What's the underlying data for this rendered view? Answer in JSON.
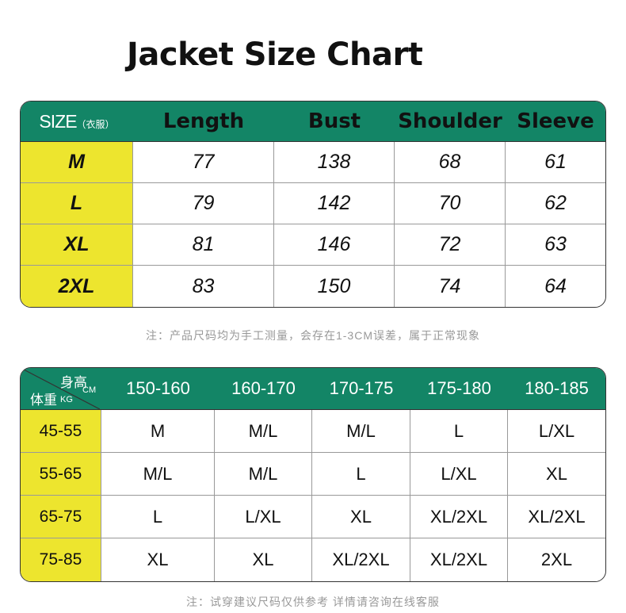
{
  "title": "Jacket Size Chart",
  "colors": {
    "header_green": "#138566",
    "size_yellow": "#ede52e"
  },
  "garment_table": {
    "size_label": "SIZE",
    "size_sub": "（衣服）",
    "headers": [
      "Length",
      "Bust",
      "Shoulder",
      "Sleeve"
    ],
    "rows": [
      {
        "size": "M",
        "values": [
          "77",
          "138",
          "68",
          "61"
        ]
      },
      {
        "size": "L",
        "values": [
          "79",
          "142",
          "70",
          "62"
        ]
      },
      {
        "size": "XL",
        "values": [
          "81",
          "146",
          "72",
          "63"
        ]
      },
      {
        "size": "2XL",
        "values": [
          "83",
          "150",
          "74",
          "64"
        ]
      }
    ]
  },
  "note1": "注：产品尺码均为手工测量，会存在1-3CM误差，属于正常现象",
  "fit_table": {
    "height_label": "身高",
    "height_unit": "CM",
    "weight_label": "体重",
    "weight_unit": "KG",
    "headers": [
      "150-160",
      "160-170",
      "170-175",
      "175-180",
      "180-185"
    ],
    "rows": [
      {
        "weight": "45-55",
        "values": [
          "M",
          "M/L",
          "M/L",
          "L",
          "L/XL"
        ]
      },
      {
        "weight": "55-65",
        "values": [
          "M/L",
          "M/L",
          "L",
          "L/XL",
          "XL"
        ]
      },
      {
        "weight": "65-75",
        "values": [
          "L",
          "L/XL",
          "XL",
          "XL/2XL",
          "XL/2XL"
        ]
      },
      {
        "weight": "75-85",
        "values": [
          "XL",
          "XL",
          "XL/2XL",
          "XL/2XL",
          "2XL"
        ]
      }
    ]
  },
  "note2": "注：试穿建议尺码仅供参考 详情请咨询在线客服"
}
